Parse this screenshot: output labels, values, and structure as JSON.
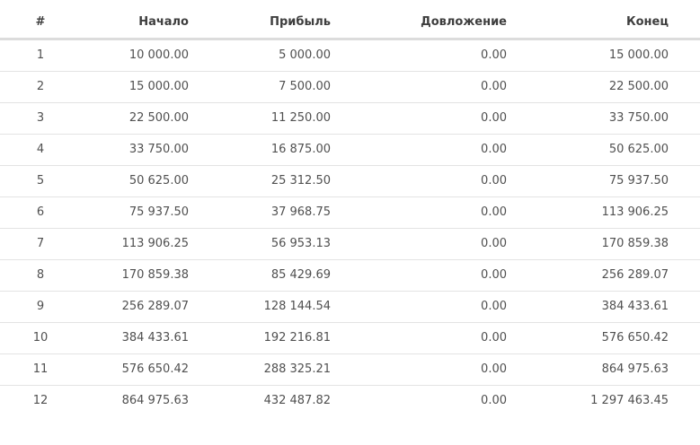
{
  "page": {
    "background_color": "#ffffff",
    "description": "Investment compound-interest calculation results table"
  },
  "colors": {
    "header_text": "#3e3e3e",
    "body_text": "#505050",
    "header_border": "#dcdcdc",
    "row_border": "#e3e3e3"
  },
  "table": {
    "columns": [
      "#",
      "Начало",
      "Прибыль",
      "Довложение",
      "Конец"
    ],
    "rows": [
      [
        "1",
        "10 000.00",
        "5 000.00",
        "0.00",
        "15 000.00"
      ],
      [
        "2",
        "15 000.00",
        "7 500.00",
        "0.00",
        "22 500.00"
      ],
      [
        "3",
        "22 500.00",
        "11 250.00",
        "0.00",
        "33 750.00"
      ],
      [
        "4",
        "33 750.00",
        "16 875.00",
        "0.00",
        "50 625.00"
      ],
      [
        "5",
        "50 625.00",
        "25 312.50",
        "0.00",
        "75 937.50"
      ],
      [
        "6",
        "75 937.50",
        "37 968.75",
        "0.00",
        "113 906.25"
      ],
      [
        "7",
        "113 906.25",
        "56 953.13",
        "0.00",
        "170 859.38"
      ],
      [
        "8",
        "170 859.38",
        "85 429.69",
        "0.00",
        "256 289.07"
      ],
      [
        "9",
        "256 289.07",
        "128 144.54",
        "0.00",
        "384 433.61"
      ],
      [
        "10",
        "384 433.61",
        "192 216.81",
        "0.00",
        "576 650.42"
      ],
      [
        "11",
        "576 650.42",
        "288 325.21",
        "0.00",
        "864 975.63"
      ],
      [
        "12",
        "864 975.63",
        "432 487.82",
        "0.00",
        "1 297 463.45"
      ]
    ]
  }
}
